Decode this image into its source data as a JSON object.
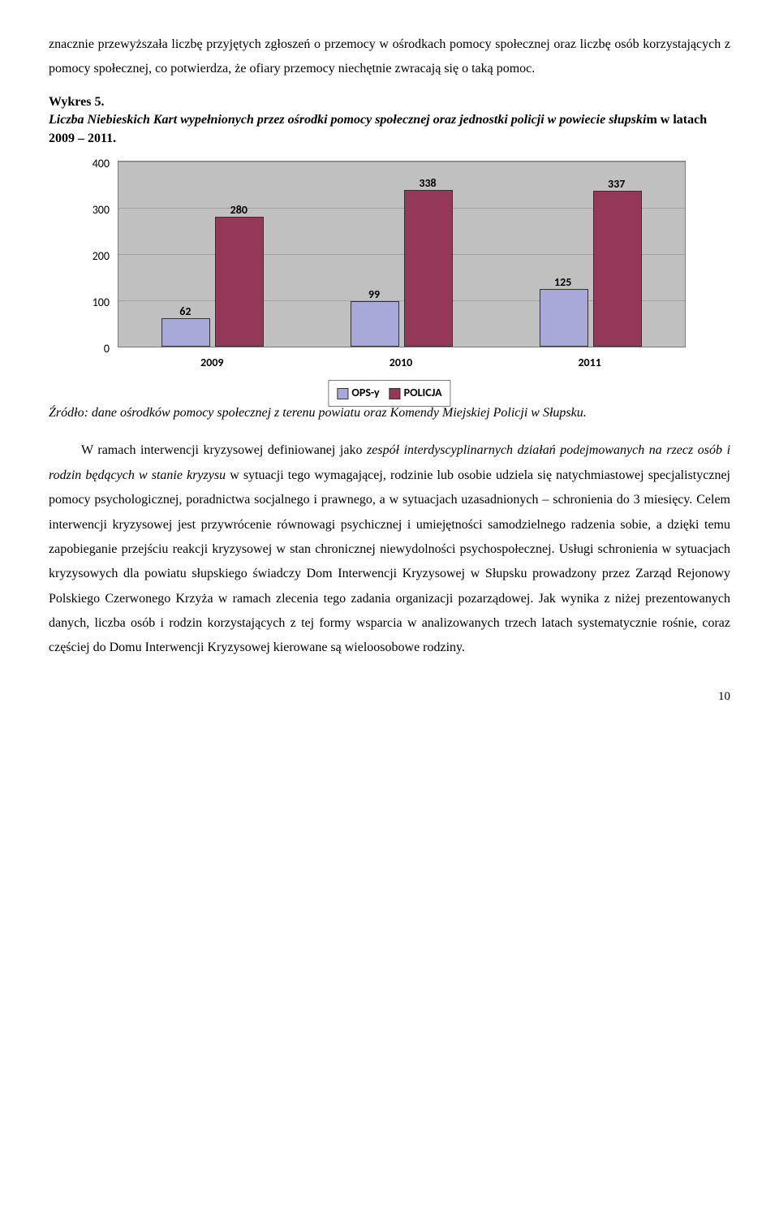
{
  "intro_para": "znacznie przewyższała liczbę przyjętych zgłoszeń o przemocy w ośrodkach pomocy społecznej oraz liczbę osób korzystających z pomocy społecznej, co potwierdza, że ofiary przemocy niechętnie zwracają się o taką pomoc.",
  "caption_line1": "Wykres 5.",
  "caption_line2": "Liczba Niebieskich Kart wypełnionych przez ośrodki pomocy społecznej oraz jednostki policji w powiecie słupski",
  "caption_line3": "m w latach 2009 – 2011.",
  "chart": {
    "y_ticks": [
      0,
      100,
      200,
      300,
      400
    ],
    "y_max": 400,
    "categories": [
      "2009",
      "2010",
      "2011"
    ],
    "series": [
      {
        "name": "OPS-y",
        "color": "#a9a9d9",
        "values": [
          62,
          99,
          125
        ]
      },
      {
        "name": "POLICJA",
        "color": "#953759",
        "values": [
          280,
          338,
          337
        ]
      }
    ],
    "plot_bg": "#c0c0c0",
    "grid_color": "#a0a0a0"
  },
  "source_line": "Źródło: dane ośrodków pomocy społecznej z terenu powiatu oraz Komendy Miejskiej Policji w Słupsku.",
  "body_p1_pre": "W ramach interwencji kryzysowej definiowanej jako ",
  "body_p1_em": "zespół interdyscyplinarnych działań podejmowanych na rzecz osób i rodzin będących w stanie kryzysu",
  "body_p1_post": " w sytuacji tego wymagającej, rodzinie lub osobie udziela się natychmiastowej specjalistycznej pomocy psychologicznej, poradnictwa socjalnego i prawnego, a w sytuacjach uzasadnionych – schronienia do 3 miesięcy. Celem interwencji kryzysowej jest przywrócenie równowagi psychicznej i umiejętności samodzielnego radzenia sobie, a dzięki temu zapobieganie przejściu reakcji kryzysowej w stan chronicznej niewydolności psychospołecznej. Usługi schronienia w sytuacjach kryzysowych dla powiatu słupskiego świadczy Dom Interwencji Kryzysowej w Słupsku prowadzony przez Zarząd Rejonowy Polskiego Czerwonego Krzyża w ramach zlecenia tego zadania organizacji pozarządowej. Jak wynika z niżej prezentowanych danych, liczba osób i rodzin korzystających z tej formy wsparcia w analizowanych trzech latach systematycznie rośnie, coraz częściej do Domu Interwencji Kryzysowej kierowane są wieloosobowe rodziny.",
  "page_number": "10"
}
